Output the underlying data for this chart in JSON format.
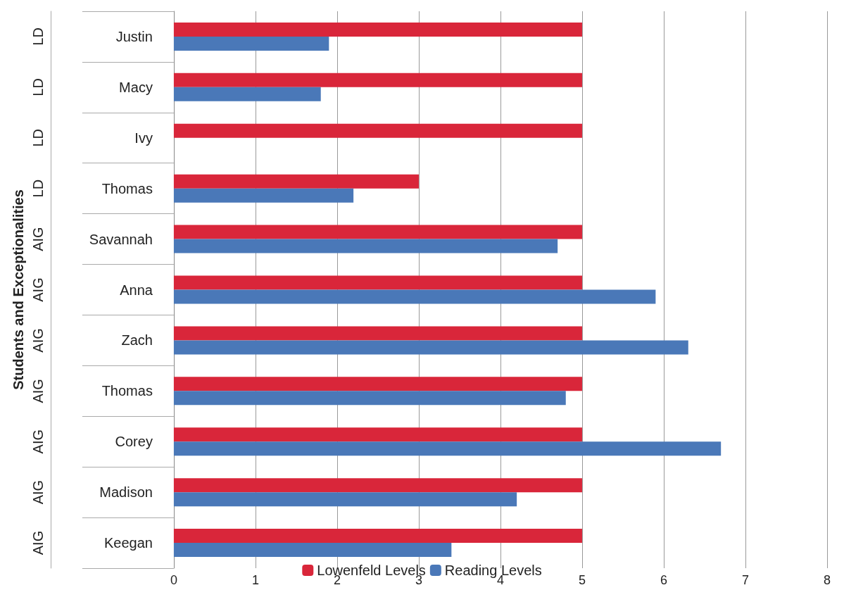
{
  "chart_data": {
    "type": "bar",
    "orientation": "horizontal",
    "ylabel": "Students and Exceptionalities",
    "categories": [
      "Justin",
      "Macy",
      "Ivy",
      "Thomas",
      "Savannah",
      "Anna",
      "Zach",
      "Thomas",
      "Corey",
      "Madison",
      "Keegan"
    ],
    "y2_categories": [
      "LD",
      "LD",
      "LD",
      "LD",
      "AIG",
      "AIG",
      "AIG",
      "AIG",
      "AIG",
      "AIG",
      "AIG"
    ],
    "series": [
      {
        "name": "Lowenfeld Levels",
        "color": "#d9263a",
        "values": [
          5,
          5,
          5,
          3,
          5,
          5,
          5,
          5,
          5,
          5,
          5
        ]
      },
      {
        "name": "Reading Levels",
        "color": "#4a78b8",
        "values": [
          1.9,
          1.8,
          null,
          2.2,
          4.7,
          5.9,
          6.3,
          4.8,
          6.7,
          4.2,
          3.4
        ]
      }
    ],
    "xlim": [
      0,
      8
    ],
    "xticks": [
      0,
      1,
      2,
      3,
      4,
      5,
      6,
      7,
      8
    ],
    "grid": "x",
    "legend": "bottom"
  }
}
